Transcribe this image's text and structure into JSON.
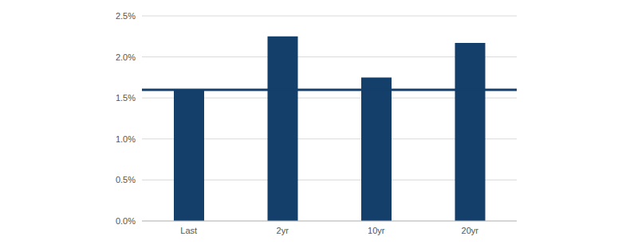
{
  "chart_data": {
    "type": "bar",
    "categories": [
      "Last",
      "2yr",
      "10yr",
      "20yr"
    ],
    "values": [
      1.6,
      2.25,
      1.75,
      2.17
    ],
    "color": "#143f6b",
    "reference_line": 1.6,
    "ylim": [
      0,
      2.5
    ],
    "yticks": [
      {
        "value": 0,
        "label": "0.0%"
      },
      {
        "value": 0.5,
        "label": "0.5%"
      },
      {
        "value": 1,
        "label": "1.0%"
      },
      {
        "value": 1.5,
        "label": "1.5%"
      },
      {
        "value": 2,
        "label": "2.0%"
      },
      {
        "value": 2.5,
        "label": "2.5%"
      }
    ],
    "grid": true
  }
}
